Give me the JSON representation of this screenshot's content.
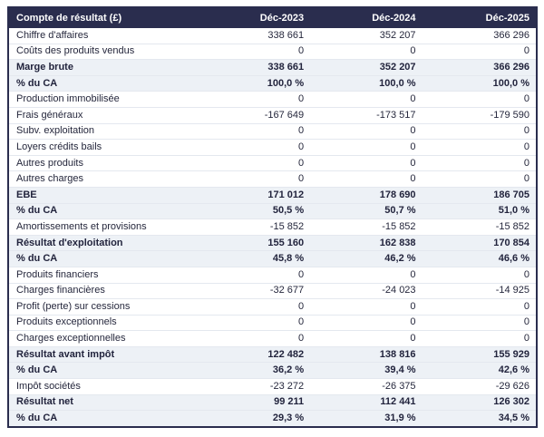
{
  "colors": {
    "header_bg": "#2a2d4e",
    "header_text": "#ffffff",
    "outer_border": "#2a2d4e",
    "row_bg": "#ffffff",
    "row_highlight_bg": "#edf1f6",
    "separator": "#e4e8ef",
    "text": "#25273c",
    "text_strong": "#22243d"
  },
  "table": {
    "title": "Compte de résultat (£)",
    "columns": [
      "Déc-2023",
      "Déc-2024",
      "Déc-2025"
    ],
    "rows": [
      {
        "label": "Chiffre d'affaires",
        "values": [
          "338 661",
          "352 207",
          "366 296"
        ],
        "emphasis": false
      },
      {
        "label": "Coûts des produits vendus",
        "values": [
          "0",
          "0",
          "0"
        ],
        "emphasis": false
      },
      {
        "label": "Marge brute",
        "values": [
          "338 661",
          "352 207",
          "366 296"
        ],
        "emphasis": true
      },
      {
        "label": "% du CA",
        "values": [
          "100,0 %",
          "100,0 %",
          "100,0 %"
        ],
        "emphasis": true
      },
      {
        "label": "Production immobilisée",
        "values": [
          "0",
          "0",
          "0"
        ],
        "emphasis": false
      },
      {
        "label": "Frais généraux",
        "values": [
          "-167 649",
          "-173 517",
          "-179 590"
        ],
        "emphasis": false
      },
      {
        "label": "Subv. exploitation",
        "values": [
          "0",
          "0",
          "0"
        ],
        "emphasis": false
      },
      {
        "label": "Loyers crédits bails",
        "values": [
          "0",
          "0",
          "0"
        ],
        "emphasis": false
      },
      {
        "label": "Autres produits",
        "values": [
          "0",
          "0",
          "0"
        ],
        "emphasis": false
      },
      {
        "label": "Autres charges",
        "values": [
          "0",
          "0",
          "0"
        ],
        "emphasis": false
      },
      {
        "label": "EBE",
        "values": [
          "171 012",
          "178 690",
          "186 705"
        ],
        "emphasis": true
      },
      {
        "label": "% du CA",
        "values": [
          "50,5 %",
          "50,7 %",
          "51,0 %"
        ],
        "emphasis": true
      },
      {
        "label": "Amortissements et provisions",
        "values": [
          "-15 852",
          "-15 852",
          "-15 852"
        ],
        "emphasis": false
      },
      {
        "label": "Résultat d'exploitation",
        "values": [
          "155 160",
          "162 838",
          "170 854"
        ],
        "emphasis": true
      },
      {
        "label": "% du CA",
        "values": [
          "45,8 %",
          "46,2 %",
          "46,6 %"
        ],
        "emphasis": true
      },
      {
        "label": "Produits financiers",
        "values": [
          "0",
          "0",
          "0"
        ],
        "emphasis": false
      },
      {
        "label": "Charges financières",
        "values": [
          "-32 677",
          "-24 023",
          "-14 925"
        ],
        "emphasis": false
      },
      {
        "label": "Profit (perte) sur cessions",
        "values": [
          "0",
          "0",
          "0"
        ],
        "emphasis": false
      },
      {
        "label": "Produits exceptionnels",
        "values": [
          "0",
          "0",
          "0"
        ],
        "emphasis": false
      },
      {
        "label": "Charges exceptionnelles",
        "values": [
          "0",
          "0",
          "0"
        ],
        "emphasis": false
      },
      {
        "label": "Résultat avant impôt",
        "values": [
          "122 482",
          "138 816",
          "155 929"
        ],
        "emphasis": true
      },
      {
        "label": "% du CA",
        "values": [
          "36,2 %",
          "39,4 %",
          "42,6 %"
        ],
        "emphasis": true
      },
      {
        "label": "Impôt sociétés",
        "values": [
          "-23 272",
          "-26 375",
          "-29 626"
        ],
        "emphasis": false
      },
      {
        "label": "Résultat net",
        "values": [
          "99 211",
          "112 441",
          "126 302"
        ],
        "emphasis": true
      },
      {
        "label": "% du CA",
        "values": [
          "29,3 %",
          "31,9 %",
          "34,5 %"
        ],
        "emphasis": true
      }
    ]
  }
}
